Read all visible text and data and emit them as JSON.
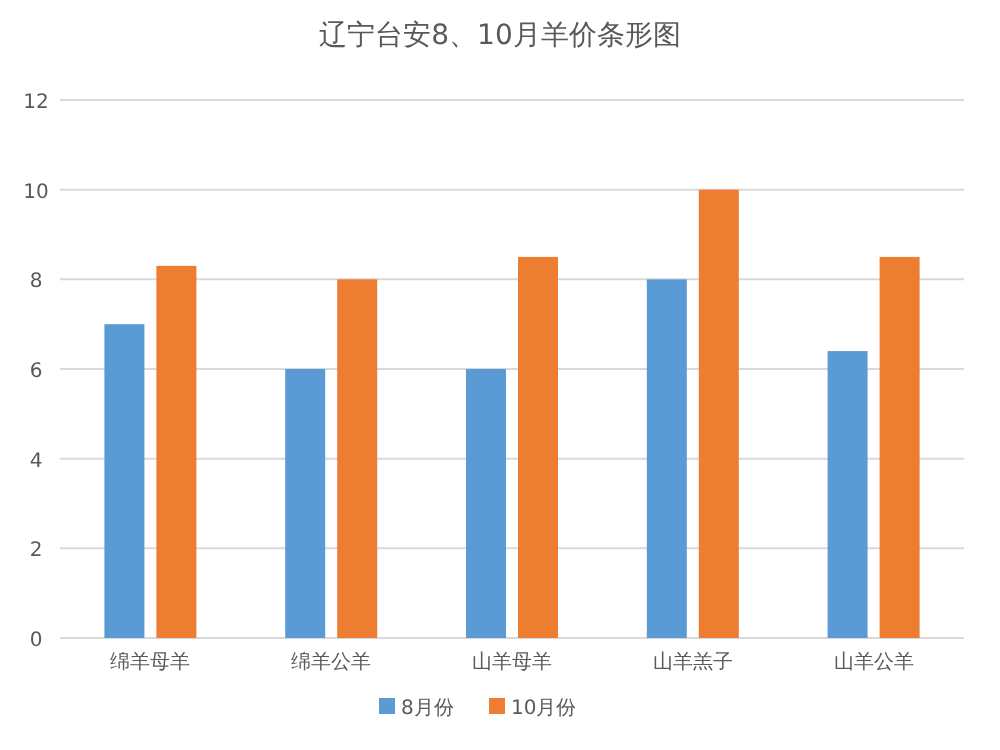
{
  "chart_data": {
    "type": "bar",
    "title": "辽宁台安8、10月羊价条形图",
    "categories": [
      "绵羊母羊",
      "绵羊公羊",
      "山羊母羊",
      "山羊羔子",
      "山羊公羊"
    ],
    "series": [
      {
        "name": "8月份",
        "color": "#5b9bd5",
        "values": [
          7,
          6,
          6,
          8,
          6.4
        ]
      },
      {
        "name": "10月份",
        "color": "#ed7d31",
        "values": [
          8.3,
          8,
          8.5,
          10,
          8.5
        ]
      }
    ],
    "ylim": [
      0,
      12
    ],
    "yticks": [
      0,
      2,
      4,
      6,
      8,
      10,
      12
    ],
    "grid": "y",
    "legend": "bottom"
  }
}
